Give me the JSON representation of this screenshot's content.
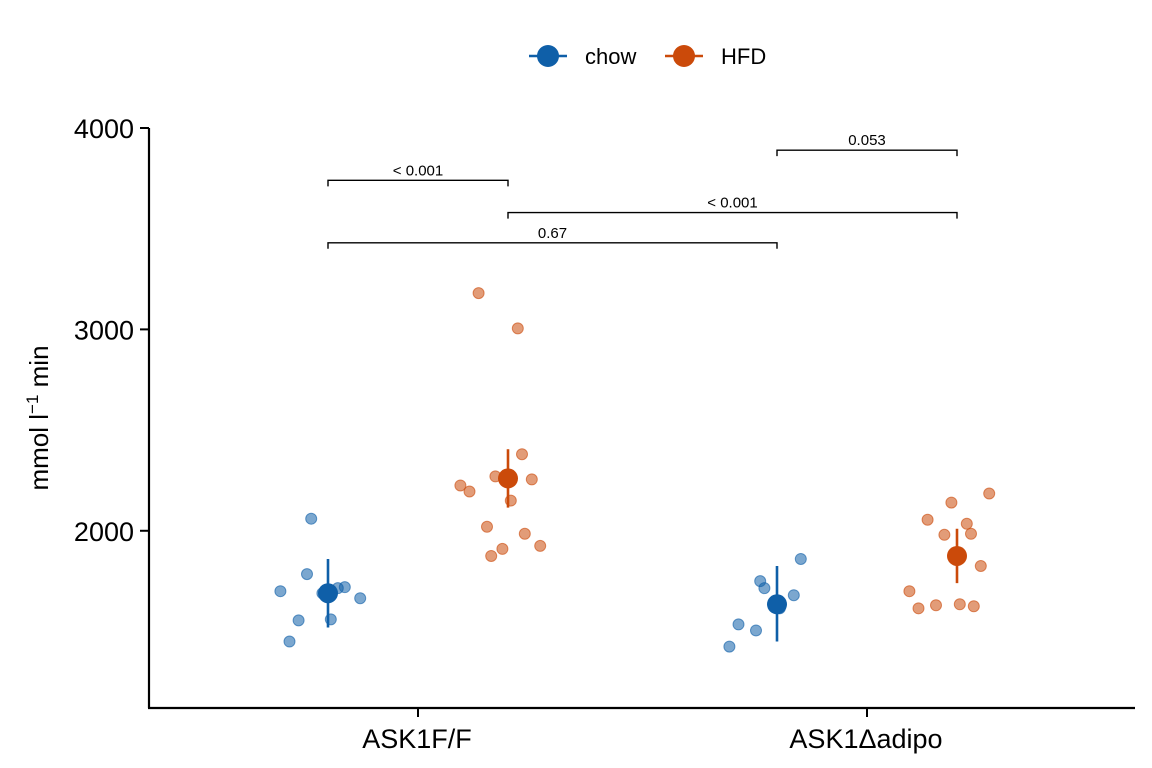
{
  "chart_data": {
    "type": "scatter",
    "ylabel": "mmol l",
    "ylabel_sup": "−1",
    "ylabel_suffix": " min",
    "ylim": [
      1120,
      4000
    ],
    "yticks": [
      2000,
      3000,
      4000
    ],
    "categories": [
      "ASK1F/F",
      "ASK1Δadipo"
    ],
    "colors": {
      "chow": "#0F5FA8",
      "HFD": "#CB4A0A"
    },
    "legend": {
      "position": "top",
      "entries": [
        "chow",
        "HFD"
      ]
    },
    "grid": false,
    "series": [
      {
        "name": "chow",
        "groups": [
          {
            "category": "ASK1F/F",
            "mean": 1690,
            "error_low": 1520,
            "error_high": 1860,
            "points": [
              1700,
              1560,
              1450,
              1785,
              1720,
              2060,
              1690,
              1665,
              1555,
              1715
            ]
          },
          {
            "category": "ASK1Δadipo",
            "mean": 1635,
            "error_low": 1450,
            "error_high": 1825,
            "points": [
              1715,
              1860,
              1425,
              1615,
              1535,
              1505,
              1680,
              1750
            ]
          }
        ]
      },
      {
        "name": "HFD",
        "groups": [
          {
            "category": "ASK1F/F",
            "mean": 2260,
            "error_low": 2115,
            "error_high": 2405,
            "points": [
              3180,
              3005,
              2380,
              2270,
              2255,
              2225,
              2150,
              2195,
              2020,
              1985,
              1875,
              1910,
              1925
            ]
          },
          {
            "category": "ASK1Δadipo",
            "mean": 1875,
            "error_low": 1740,
            "error_high": 2010,
            "points": [
              2140,
              2185,
              2055,
              2035,
              1985,
              1980,
              1825,
              1700,
              1635,
              1615,
              1630,
              1625
            ]
          }
        ]
      }
    ],
    "comparisons": [
      {
        "label": "< 0.001",
        "from": "ASK1F/F chow",
        "to": "ASK1F/F HFD",
        "y": 3740
      },
      {
        "label": "0.053",
        "from": "ASK1Δadipo chow",
        "to": "ASK1Δadipo HFD",
        "y": 3890
      },
      {
        "label": "< 0.001",
        "from": "ASK1F/F HFD",
        "to": "ASK1Δadipo HFD",
        "y": 3580
      },
      {
        "label": "0.67",
        "from": "ASK1F/F chow",
        "to": "ASK1Δadipo chow",
        "y": 3430
      }
    ]
  }
}
